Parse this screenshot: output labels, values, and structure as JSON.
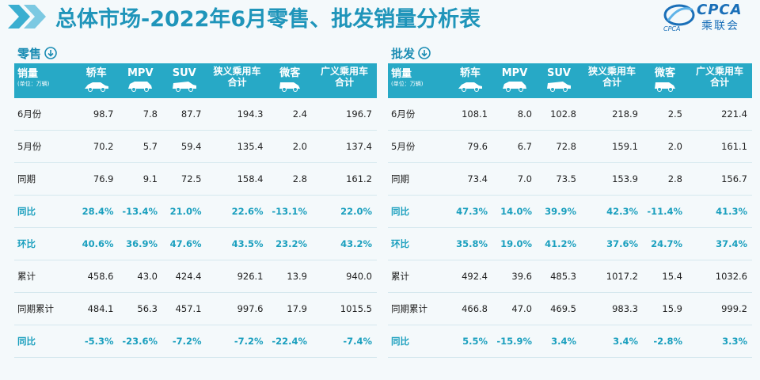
{
  "title": "总体市场-2022年6月零售、批发销量分析表",
  "logo": {
    "brand": "CPCA",
    "cn_name": "乘联会",
    "small_text": "CPCA"
  },
  "header": {
    "metric": "销量",
    "unit": "(单位：万辆)",
    "columns": [
      "轿车",
      "MPV",
      "SUV",
      "狭义乘用车合计",
      "微客",
      "广义乘用车合计"
    ]
  },
  "retail": {
    "label": "零售",
    "rows": [
      {
        "label": "6月份",
        "values": [
          "98.7",
          "7.8",
          "87.7",
          "194.3",
          "2.4",
          "196.7"
        ],
        "highlight": false
      },
      {
        "label": "5月份",
        "values": [
          "70.2",
          "5.7",
          "59.4",
          "135.4",
          "2.0",
          "137.4"
        ],
        "highlight": false
      },
      {
        "label": "同期",
        "values": [
          "76.9",
          "9.1",
          "72.5",
          "158.4",
          "2.8",
          "161.2"
        ],
        "highlight": false
      },
      {
        "label": "同比",
        "values": [
          "28.4%",
          "-13.4%",
          "21.0%",
          "22.6%",
          "-13.1%",
          "22.0%"
        ],
        "highlight": true
      },
      {
        "label": "环比",
        "values": [
          "40.6%",
          "36.9%",
          "47.6%",
          "43.5%",
          "23.2%",
          "43.2%"
        ],
        "highlight": true
      },
      {
        "label": "累计",
        "values": [
          "458.6",
          "43.0",
          "424.4",
          "926.1",
          "13.9",
          "940.0"
        ],
        "highlight": false
      },
      {
        "label": "同期累计",
        "values": [
          "484.1",
          "56.3",
          "457.1",
          "997.6",
          "17.9",
          "1015.5"
        ],
        "highlight": false
      },
      {
        "label": "同比",
        "values": [
          "-5.3%",
          "-23.6%",
          "-7.2%",
          "-7.2%",
          "-22.4%",
          "-7.4%"
        ],
        "highlight": true
      }
    ]
  },
  "wholesale": {
    "label": "批发",
    "rows": [
      {
        "label": "6月份",
        "values": [
          "108.1",
          "8.0",
          "102.8",
          "218.9",
          "2.5",
          "221.4"
        ],
        "highlight": false
      },
      {
        "label": "5月份",
        "values": [
          "79.6",
          "6.7",
          "72.8",
          "159.1",
          "2.0",
          "161.1"
        ],
        "highlight": false
      },
      {
        "label": "同期",
        "values": [
          "73.4",
          "7.0",
          "73.5",
          "153.9",
          "2.8",
          "156.7"
        ],
        "highlight": false
      },
      {
        "label": "同比",
        "values": [
          "47.3%",
          "14.0%",
          "39.9%",
          "42.3%",
          "-11.4%",
          "41.3%"
        ],
        "highlight": true
      },
      {
        "label": "环比",
        "values": [
          "35.8%",
          "19.0%",
          "41.2%",
          "37.6%",
          "24.7%",
          "37.4%"
        ],
        "highlight": true
      },
      {
        "label": "累计",
        "values": [
          "492.4",
          "39.6",
          "485.3",
          "1017.2",
          "15.4",
          "1032.6"
        ],
        "highlight": false
      },
      {
        "label": "同期累计",
        "values": [
          "466.8",
          "47.0",
          "469.5",
          "983.3",
          "15.9",
          "999.2"
        ],
        "highlight": false
      },
      {
        "label": "同比",
        "values": [
          "5.5%",
          "-15.9%",
          "3.4%",
          "3.4%",
          "-2.8%",
          "3.3%"
        ],
        "highlight": true
      }
    ]
  },
  "colors": {
    "accent": "#27a9c6",
    "highlight_text": "#1a9fbe",
    "title": "#1f95ba"
  },
  "icons": [
    "chevron-double-right-icon",
    "down-arrow-circle-icon",
    "sedan-icon",
    "mpv-icon",
    "suv-icon",
    "car-icon",
    "minivan-icon"
  ]
}
